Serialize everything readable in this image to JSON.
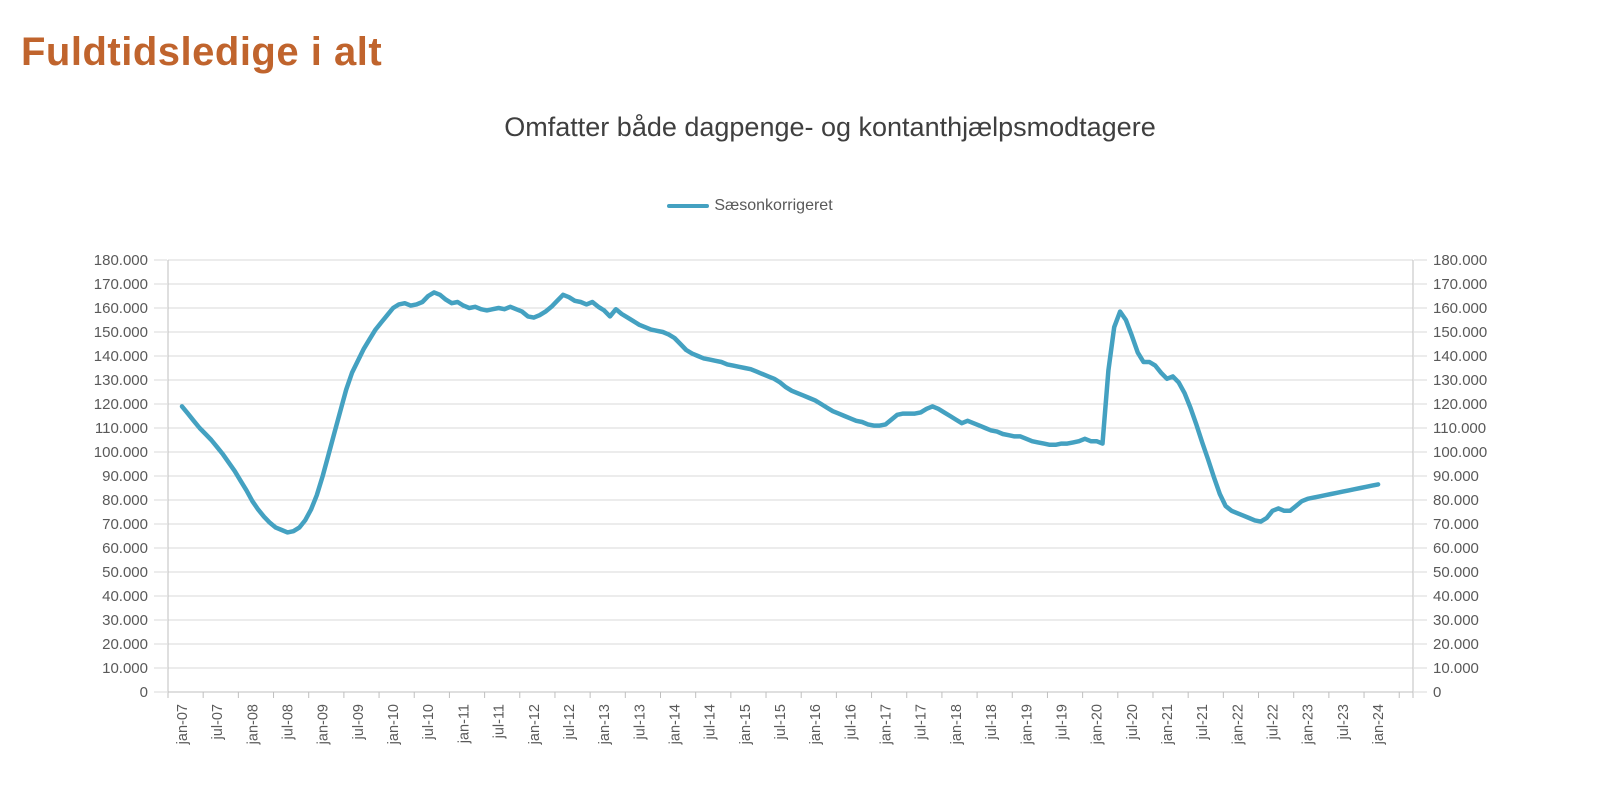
{
  "page": {
    "title": "Fuldtidsledige i alt",
    "title_color": "#c0642d",
    "background": "#ffffff"
  },
  "chart": {
    "subtitle": "Omfatter både dagpenge- og kontanthjælpsmodtagere",
    "legend": [
      {
        "label": "Sæsonkorrigeret",
        "color": "#44a1c1"
      }
    ]
  },
  "chart_data": {
    "type": "line",
    "title": "Omfatter både dagpenge- og kontanthjælpsmodtagere",
    "legend_position": "top-center",
    "grid": "horizontal",
    "y_axis_sides": "both",
    "ylim": [
      0,
      180000
    ],
    "ytick_step": 10000,
    "ytick_labels": [
      "0",
      "10.000",
      "20.000",
      "30.000",
      "40.000",
      "50.000",
      "60.000",
      "70.000",
      "80.000",
      "90.000",
      "100.000",
      "110.000",
      "120.000",
      "130.000",
      "140.000",
      "150.000",
      "160.000",
      "170.000",
      "180.000"
    ],
    "x_frequency": "monthly",
    "x_start": "jan-07",
    "x_end": "jan-24",
    "x_tick_labels": [
      "jan-07",
      "jul-07",
      "jan-08",
      "jul-08",
      "jan-09",
      "jul-09",
      "jan-10",
      "jul-10",
      "jan-11",
      "jul-11",
      "jan-12",
      "jul-12",
      "jan-13",
      "jul-13",
      "jan-14",
      "jul-14",
      "jan-15",
      "jul-15",
      "jan-16",
      "jul-16",
      "jan-17",
      "jul-17",
      "jan-18",
      "jul-18",
      "jan-19",
      "jul-19",
      "jan-20",
      "jul-20",
      "jan-21",
      "jul-21",
      "jan-22",
      "jul-22",
      "jan-23",
      "jul-23",
      "jan-24"
    ],
    "colors": {
      "gridline": "#d9d9d9",
      "axis_line": "#bfbfbf",
      "tick": "#d9d9d9",
      "label_text": "#595959"
    },
    "series": [
      {
        "name": "Sæsonkorrigeret",
        "color": "#44a1c1",
        "stroke_width": 4.5,
        "values": [
          119000,
          116000,
          113000,
          110000,
          107500,
          105000,
          102000,
          99000,
          95500,
          92000,
          88000,
          84000,
          79500,
          76000,
          73000,
          70500,
          68500,
          67500,
          66500,
          67000,
          68500,
          71500,
          76000,
          82000,
          90000,
          99000,
          108000,
          117000,
          126000,
          133000,
          138000,
          143000,
          147000,
          151000,
          154000,
          157000,
          160000,
          161500,
          162000,
          161000,
          161500,
          162500,
          165000,
          166500,
          165500,
          163500,
          162000,
          162500,
          161000,
          160000,
          160500,
          159500,
          159000,
          159500,
          160000,
          159500,
          160500,
          159500,
          158500,
          156500,
          156000,
          157000,
          158500,
          160500,
          163000,
          165500,
          164500,
          163000,
          162500,
          161500,
          162500,
          160500,
          159000,
          156500,
          159500,
          157500,
          156000,
          154500,
          153000,
          152000,
          151000,
          150500,
          150000,
          149000,
          147500,
          145000,
          142500,
          141000,
          140000,
          139000,
          138500,
          138000,
          137500,
          136500,
          136000,
          135500,
          135000,
          134500,
          133500,
          132500,
          131500,
          130500,
          129000,
          127000,
          125500,
          124500,
          123500,
          122500,
          121500,
          120000,
          118500,
          117000,
          116000,
          115000,
          114000,
          113000,
          112500,
          111500,
          111000,
          111000,
          111500,
          113500,
          115500,
          116000,
          116000,
          116000,
          116500,
          118000,
          119000,
          118000,
          116500,
          115000,
          113500,
          112000,
          113000,
          112000,
          111000,
          110000,
          109000,
          108500,
          107500,
          107000,
          106500,
          106500,
          105500,
          104500,
          104000,
          103500,
          103000,
          103000,
          103500,
          103500,
          104000,
          104500,
          105500,
          104500,
          104500,
          103500,
          134000,
          152000,
          158500,
          155000,
          148500,
          141500,
          137500,
          137500,
          136000,
          133000,
          130500,
          131500,
          129000,
          124500,
          118500,
          111500,
          104000,
          97000,
          89500,
          82500,
          77500,
          75500,
          74500,
          73500,
          72500,
          71500,
          71000,
          72500,
          75500,
          76500,
          75500,
          75500,
          77500,
          79500,
          80500,
          81000,
          81500,
          82000,
          82500,
          83000,
          83500,
          84000,
          84500,
          85000,
          85500,
          86000,
          86500
        ]
      }
    ]
  }
}
